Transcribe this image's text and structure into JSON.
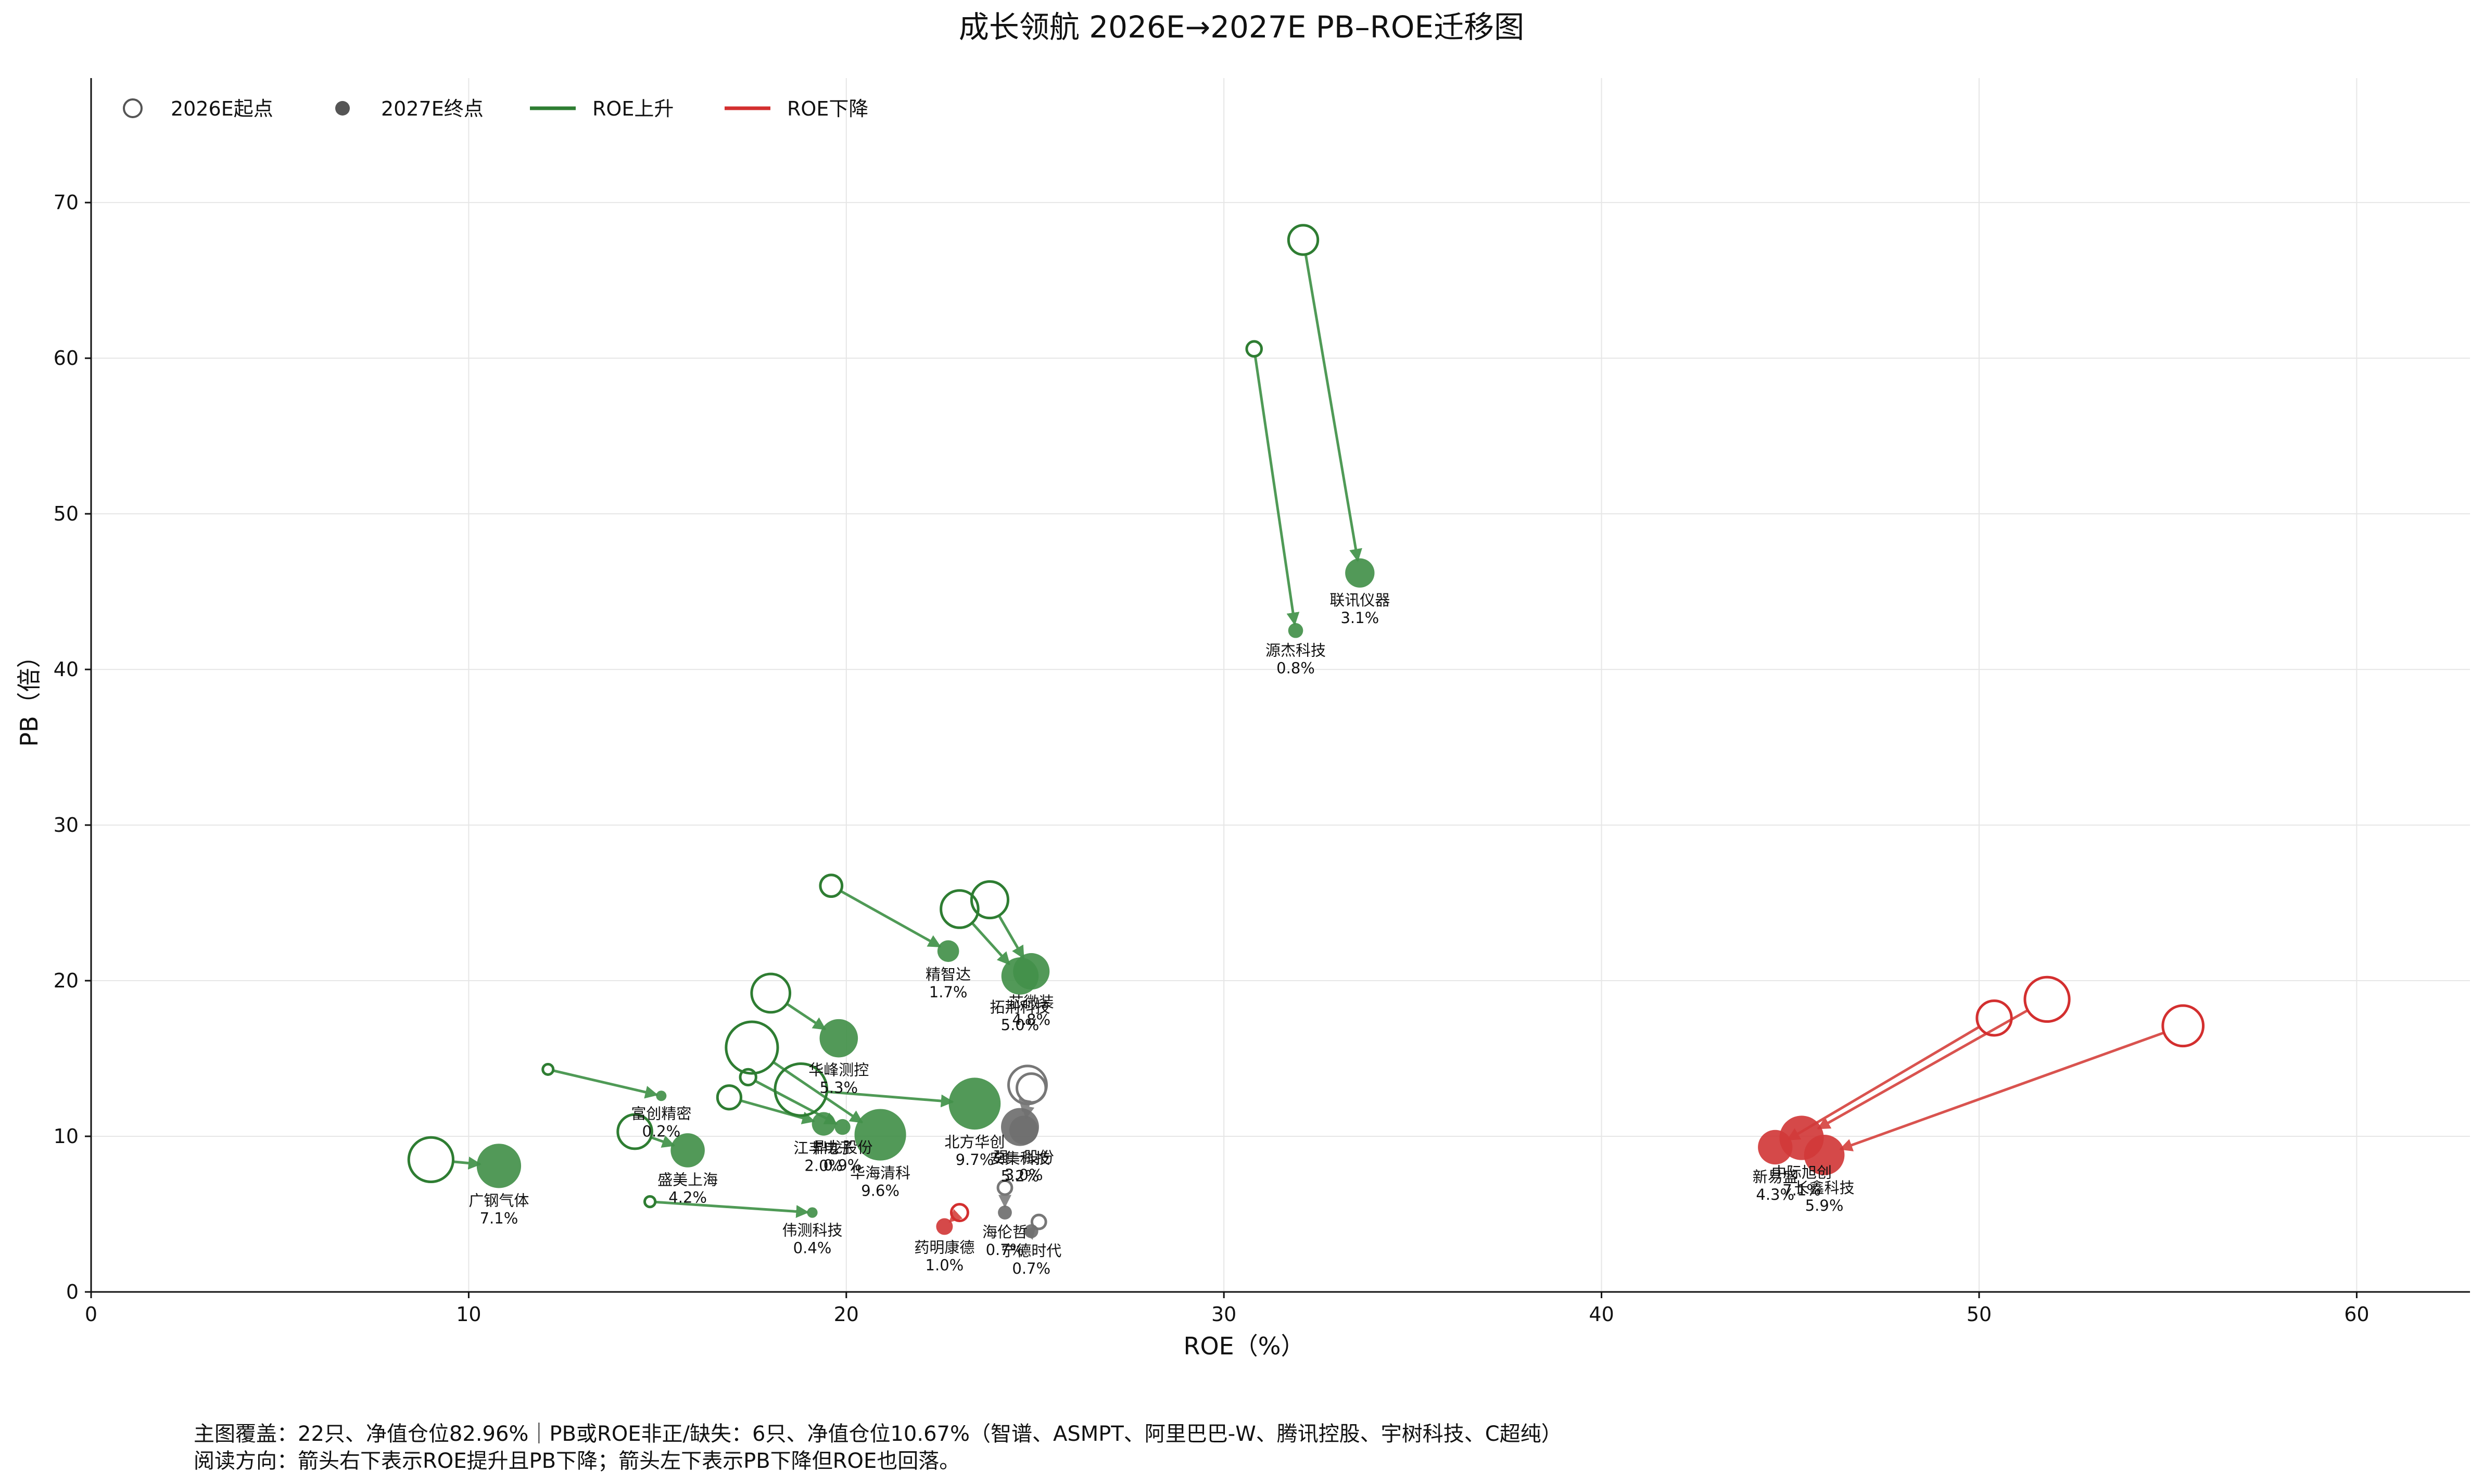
{
  "chart_data": {
    "type": "scatter",
    "title": "成长领航 2026E→2027E PB–ROE迁移图",
    "xlabel": "ROE（%）",
    "ylabel": "PB（倍）",
    "xlim": [
      0,
      63
    ],
    "ylim": [
      0,
      78
    ],
    "xticks": [
      0,
      10,
      20,
      30,
      40,
      50,
      60
    ],
    "yticks": [
      0,
      10,
      20,
      30,
      40,
      50,
      60,
      70
    ],
    "grid": true,
    "legend_position": "top-left",
    "legend": {
      "start": "2026E起点",
      "end": "2027E终点",
      "up": "ROE上升",
      "down": "ROE下降"
    },
    "colors": {
      "up": "#2e7d32",
      "down": "#d32f2f",
      "neutral": "#666666"
    },
    "series": [
      {
        "name": "联讯仪器",
        "weight": "3.1%",
        "x0": 32.1,
        "y0": 67.6,
        "x1": 33.6,
        "y1": 46.2,
        "trend": "up"
      },
      {
        "name": "源杰科技",
        "weight": "0.8%",
        "x0": 30.8,
        "y0": 60.6,
        "x1": 31.9,
        "y1": 42.5,
        "trend": "up"
      },
      {
        "name": "精智达",
        "weight": "1.7%",
        "x0": 19.6,
        "y0": 26.1,
        "x1": 22.7,
        "y1": 21.9,
        "trend": "up"
      },
      {
        "name": "芯微装",
        "weight": "4.8%",
        "x0": 23.8,
        "y0": 25.2,
        "x1": 24.9,
        "y1": 20.6,
        "trend": "up"
      },
      {
        "name": "拓荆科技",
        "weight": "5.0%",
        "x0": 23.0,
        "y0": 24.6,
        "x1": 24.6,
        "y1": 20.3,
        "trend": "up"
      },
      {
        "name": "华峰测控",
        "weight": "5.3%",
        "x0": 18.0,
        "y0": 19.2,
        "x1": 19.8,
        "y1": 16.3,
        "trend": "up"
      },
      {
        "name": "华海清科",
        "weight": "9.6%",
        "x0": 17.5,
        "y0": 15.7,
        "x1": 20.9,
        "y1": 10.1,
        "trend": "up"
      },
      {
        "name": "富创精密",
        "weight": "0.2%",
        "x0": 12.1,
        "y0": 14.3,
        "x1": 15.1,
        "y1": 12.6,
        "trend": "up"
      },
      {
        "name": "江丰电子",
        "weight": "2.0%",
        "x0": 16.9,
        "y0": 12.5,
        "x1": 19.4,
        "y1": 10.8,
        "trend": "up"
      },
      {
        "name": "鼎龙股份",
        "weight": "0.9%",
        "x0": 17.4,
        "y0": 13.8,
        "x1": 19.9,
        "y1": 10.6,
        "trend": "up"
      },
      {
        "name": "北方华创",
        "weight": "9.7%",
        "x0": 18.8,
        "y0": 13.0,
        "x1": 23.4,
        "y1": 12.1,
        "trend": "up"
      },
      {
        "name": "强一股份",
        "weight": "3.0%",
        "x0": 24.9,
        "y0": 13.1,
        "x1": 24.7,
        "y1": 10.4,
        "trend": "neutral"
      },
      {
        "name": "安集科技",
        "weight": "5.2%",
        "x0": 24.8,
        "y0": 13.3,
        "x1": 24.6,
        "y1": 10.6,
        "trend": "neutral"
      },
      {
        "name": "广钢气体",
        "weight": "7.1%",
        "x0": 9.0,
        "y0": 8.5,
        "x1": 10.8,
        "y1": 8.1,
        "trend": "up"
      },
      {
        "name": "盛美上海",
        "weight": "4.2%",
        "x0": 14.4,
        "y0": 10.3,
        "x1": 15.8,
        "y1": 9.1,
        "trend": "up"
      },
      {
        "name": "伟测科技",
        "weight": "0.4%",
        "x0": 14.8,
        "y0": 5.8,
        "x1": 19.1,
        "y1": 5.1,
        "trend": "up"
      },
      {
        "name": "海伦哲",
        "weight": "0.7%",
        "x0": 24.2,
        "y0": 6.7,
        "x1": 24.2,
        "y1": 5.1,
        "trend": "neutral"
      },
      {
        "name": "药明康德",
        "weight": "1.0%",
        "x0": 23.0,
        "y0": 5.1,
        "x1": 22.6,
        "y1": 4.2,
        "trend": "down"
      },
      {
        "name": "宁德时代",
        "weight": "0.7%",
        "x0": 25.1,
        "y0": 4.5,
        "x1": 24.9,
        "y1": 3.9,
        "trend": "neutral"
      },
      {
        "name": "中际旭创",
        "weight": "7.1%",
        "x0": 51.8,
        "y0": 18.8,
        "x1": 45.3,
        "y1": 9.9,
        "trend": "down"
      },
      {
        "name": "新易盛",
        "weight": "4.3%",
        "x0": 50.4,
        "y0": 17.6,
        "x1": 44.6,
        "y1": 9.3,
        "trend": "down"
      },
      {
        "name": "长鑫科技",
        "weight": "5.9%",
        "x0": 55.4,
        "y0": 17.1,
        "x1": 45.9,
        "y1": 8.8,
        "trend": "down"
      }
    ]
  },
  "footnotes": {
    "line1": "主图覆盖：22只、净值仓位82.96%｜PB或ROE非正/缺失：6只、净值仓位10.67%（智谱、ASMPT、阿里巴巴-W、腾讯控股、宇树科技、C超纯）",
    "line2": "阅读方向：箭头右下表示ROE提升且PB下降；箭头左下表示PB下降但ROE也回落。"
  }
}
